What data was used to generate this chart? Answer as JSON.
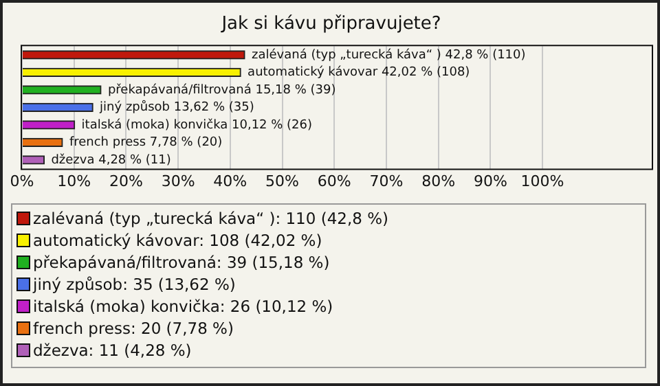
{
  "chart_data": {
    "type": "bar",
    "orientation": "horizontal",
    "title": "Jak si kávu připravujete?",
    "categories": [
      "zalévaná (typ „turecká káva“ )",
      "automatický kávovar",
      "překapávaná/filtrovaná",
      "jiný způsob",
      "italská (moka) konvička",
      "french press",
      "džezva"
    ],
    "values": [
      42.8,
      42.02,
      15.18,
      13.62,
      10.12,
      7.78,
      4.28
    ],
    "value_labels": [
      "42,8 % (110)",
      "42,02 % (108)",
      "15,18 % (39)",
      "13,62 % (35)",
      "10,12 % (26)",
      "7,78 % (20)",
      "4,28 % (11)"
    ],
    "colors": [
      "#c0180c",
      "#f8f000",
      "#20b020",
      "#4a70e8",
      "#c020c8",
      "#e87010",
      "#b060b8"
    ],
    "xlim": [
      0,
      121
    ],
    "xticks": [
      {
        "value": 0,
        "label": "0%"
      },
      {
        "value": 10,
        "label": "10%"
      },
      {
        "value": 20,
        "label": "20%"
      },
      {
        "value": 30,
        "label": "30%"
      },
      {
        "value": 40,
        "label": "40%"
      },
      {
        "value": 50,
        "label": "50%"
      },
      {
        "value": 60,
        "label": "60%"
      },
      {
        "value": 70,
        "label": "70%"
      },
      {
        "value": 80,
        "label": "80%"
      },
      {
        "value": 90,
        "label": "90%"
      },
      {
        "value": 100,
        "label": "100%"
      }
    ],
    "grid": "x",
    "tick_labels": "x",
    "legend": false,
    "annotations": [
      "zalévaná (typ „turecká káva“ ): 110 (42,8 %)",
      "automatický kávovar: 108 (42,02 %)",
      "překapávaná/filtrovaná: 39 (15,18 %)",
      "jiný způsob: 35 (13,62 %)",
      "italská (moka) konvička: 26 (10,12 %)",
      "french press: 20 (7,78 %)",
      "džezva: 11 (4,28 %)"
    ]
  }
}
